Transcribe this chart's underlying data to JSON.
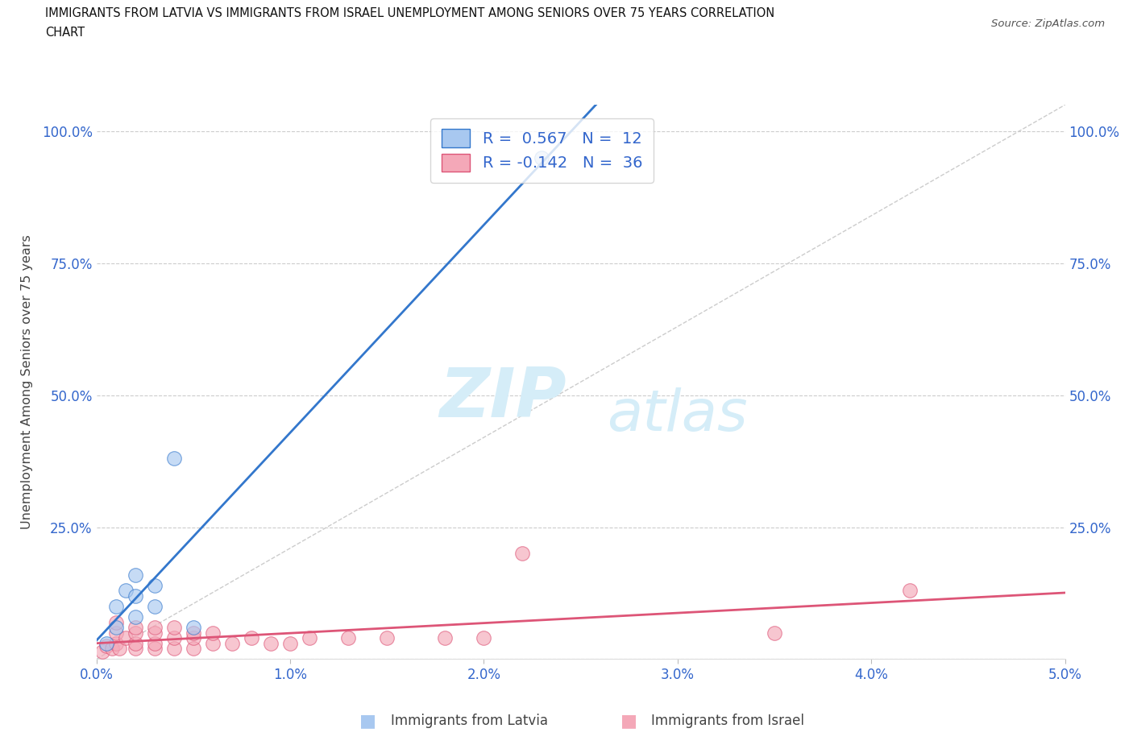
{
  "title_line1": "IMMIGRANTS FROM LATVIA VS IMMIGRANTS FROM ISRAEL UNEMPLOYMENT AMONG SENIORS OVER 75 YEARS CORRELATION",
  "title_line2": "CHART",
  "source": "Source: ZipAtlas.com",
  "ylabel": "Unemployment Among Seniors over 75 years",
  "legend_r1_label": "R =  0.567   N =  12",
  "legend_r2_label": "R = -0.142   N =  36",
  "latvia_color": "#a8c8f0",
  "israel_color": "#f4a8b8",
  "latvia_line_color": "#3377cc",
  "israel_line_color": "#dd5577",
  "diag_line_color": "#cccccc",
  "xlim_min": 0.0,
  "xlim_max": 0.05,
  "ylim_min": 0.0,
  "ylim_max": 1.05,
  "xticks": [
    0.0,
    0.01,
    0.02,
    0.03,
    0.04,
    0.05
  ],
  "xticklabels": [
    "0.0%",
    "1.0%",
    "2.0%",
    "3.0%",
    "4.0%",
    "5.0%"
  ],
  "yticks": [
    0.0,
    0.25,
    0.5,
    0.75,
    1.0
  ],
  "yticklabels_left": [
    "",
    "25.0%",
    "50.0%",
    "75.0%",
    "100.0%"
  ],
  "yticklabels_right": [
    "",
    "25.0%",
    "50.0%",
    "75.0%",
    "100.0%"
  ],
  "latvia_x": [
    0.0005,
    0.001,
    0.001,
    0.0015,
    0.002,
    0.002,
    0.002,
    0.003,
    0.003,
    0.004,
    0.005,
    0.023
  ],
  "latvia_y": [
    0.03,
    0.06,
    0.1,
    0.13,
    0.08,
    0.12,
    0.16,
    0.1,
    0.14,
    0.38,
    0.06,
    0.95
  ],
  "israel_x": [
    0.0003,
    0.0005,
    0.0008,
    0.001,
    0.001,
    0.001,
    0.0012,
    0.0015,
    0.002,
    0.002,
    0.002,
    0.002,
    0.003,
    0.003,
    0.003,
    0.003,
    0.004,
    0.004,
    0.004,
    0.005,
    0.005,
    0.005,
    0.006,
    0.006,
    0.007,
    0.008,
    0.009,
    0.01,
    0.011,
    0.013,
    0.015,
    0.018,
    0.02,
    0.022,
    0.035,
    0.042
  ],
  "israel_y": [
    0.015,
    0.025,
    0.02,
    0.03,
    0.05,
    0.07,
    0.02,
    0.04,
    0.02,
    0.03,
    0.05,
    0.06,
    0.02,
    0.03,
    0.05,
    0.06,
    0.02,
    0.04,
    0.06,
    0.02,
    0.04,
    0.05,
    0.03,
    0.05,
    0.03,
    0.04,
    0.03,
    0.03,
    0.04,
    0.04,
    0.04,
    0.04,
    0.04,
    0.2,
    0.05,
    0.13
  ],
  "bottom_legend_latvia": "Immigrants from Latvia",
  "bottom_legend_israel": "Immigrants from Israel",
  "watermark1": "ZIP",
  "watermark2": "atlas"
}
